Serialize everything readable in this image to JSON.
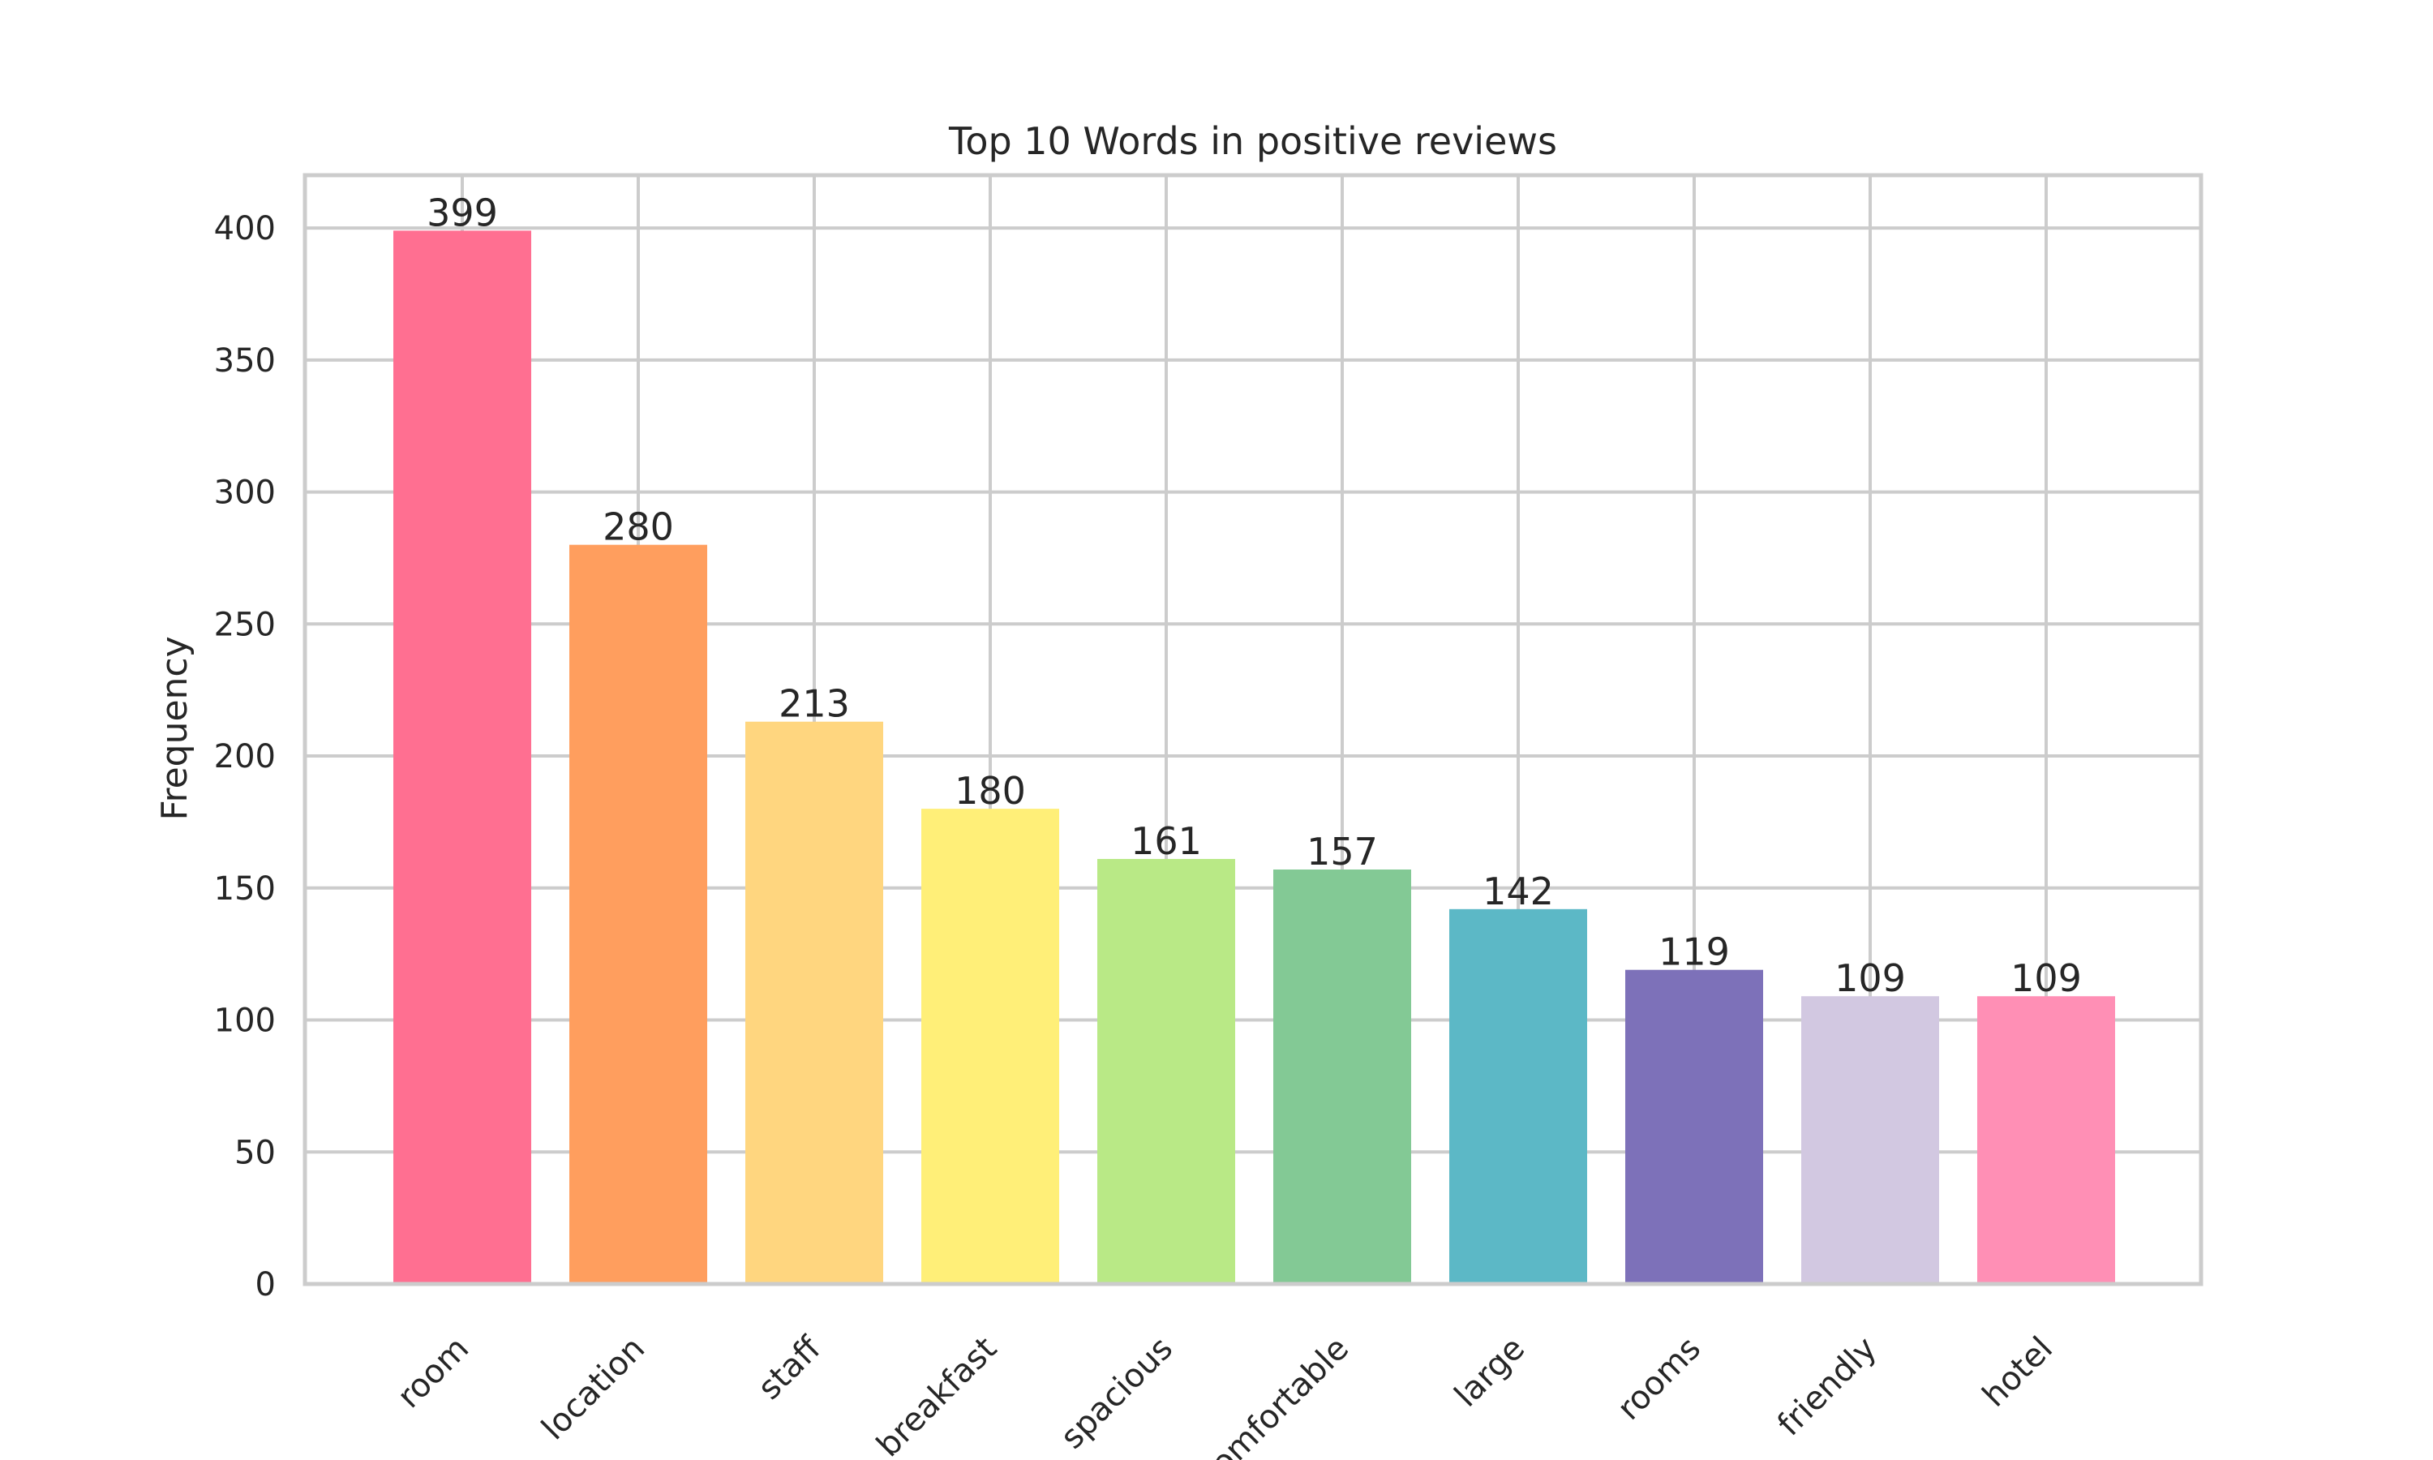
{
  "chart_data": {
    "type": "bar",
    "title": "Top 10 Words in positive reviews",
    "xlabel": "",
    "ylabel": "Frequency",
    "categories": [
      "room",
      "location",
      "staff",
      "breakfast",
      "spacious",
      "comfortable",
      "large",
      "rooms",
      "friendly",
      "hotel"
    ],
    "values": [
      399,
      280,
      213,
      180,
      161,
      157,
      142,
      119,
      109,
      109
    ],
    "value_labels": [
      "399",
      "280",
      "213",
      "180",
      "161",
      "157",
      "142",
      "119",
      "109",
      "109"
    ],
    "colors": [
      "#ff6f91",
      "#ff9e5e",
      "#ffd67f",
      "#ffef78",
      "#b9e986",
      "#83c995",
      "#5cb8c6",
      "#7d71b9",
      "#d2c8e1",
      "#ff8fb5"
    ],
    "ylim": [
      0,
      420
    ],
    "yticks": [
      0,
      50,
      100,
      150,
      200,
      250,
      300,
      350,
      400
    ],
    "ytick_labels": [
      "0",
      "50",
      "100",
      "150",
      "200",
      "250",
      "300",
      "350",
      "400"
    ],
    "grid": true,
    "legend": "none"
  }
}
